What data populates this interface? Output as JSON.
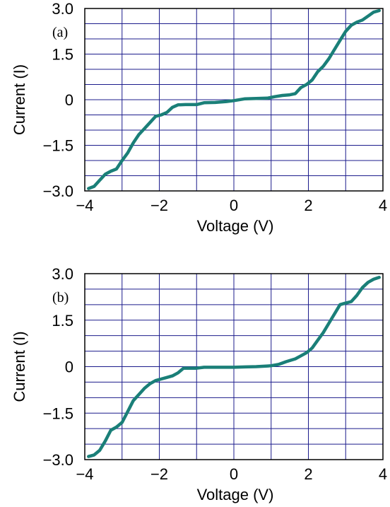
{
  "chart_data": [
    {
      "type": "line",
      "panel_label": "(a)",
      "xlabel": "Voltage (V)",
      "ylabel": "Current (I)",
      "xlim": [
        -4,
        4
      ],
      "ylim": [
        -3,
        3
      ],
      "x_ticks": [
        -4,
        -2,
        0,
        2,
        4
      ],
      "x_tick_labels": [
        "−4",
        "−2",
        "0",
        "2",
        "4"
      ],
      "y_ticks": [
        -3,
        -1.5,
        0,
        1.5,
        3
      ],
      "y_tick_labels": [
        "−3.0",
        "−1.5",
        "0",
        "1.5",
        "3.0"
      ],
      "grid": true,
      "line_color": "#1a7f78",
      "grid_color": "#1c1c8c",
      "x": [
        -3.9,
        -3.75,
        -3.6,
        -3.45,
        -3.3,
        -3.15,
        -3.0,
        -2.85,
        -2.7,
        -2.55,
        -2.4,
        -2.25,
        -2.1,
        -1.95,
        -1.8,
        -1.65,
        -1.5,
        -1.3,
        -1.0,
        -0.8,
        -0.5,
        -0.2,
        0.0,
        0.3,
        0.6,
        0.9,
        1.1,
        1.3,
        1.5,
        1.65,
        1.8,
        1.95,
        2.1,
        2.25,
        2.4,
        2.55,
        2.7,
        2.85,
        3.0,
        3.15,
        3.3,
        3.45,
        3.6,
        3.75,
        3.9
      ],
      "y": [
        -2.92,
        -2.85,
        -2.65,
        -2.45,
        -2.35,
        -2.28,
        -2.0,
        -1.75,
        -1.42,
        -1.15,
        -0.95,
        -0.75,
        -0.55,
        -0.5,
        -0.42,
        -0.25,
        -0.17,
        -0.16,
        -0.16,
        -0.1,
        -0.09,
        -0.06,
        -0.03,
        0.03,
        0.04,
        0.05,
        0.1,
        0.14,
        0.16,
        0.2,
        0.4,
        0.5,
        0.65,
        0.92,
        1.1,
        1.35,
        1.65,
        1.95,
        2.25,
        2.45,
        2.55,
        2.62,
        2.75,
        2.88,
        2.93
      ]
    },
    {
      "type": "line",
      "panel_label": "(b)",
      "xlabel": "Voltage (V)",
      "ylabel": "Current (I)",
      "xlim": [
        -4,
        4
      ],
      "ylim": [
        -3,
        3
      ],
      "x_ticks": [
        -4,
        -2,
        0,
        2,
        4
      ],
      "x_tick_labels": [
        "−4",
        "−2",
        "0",
        "2",
        "4"
      ],
      "y_ticks": [
        -3,
        -1.5,
        0,
        1.5,
        3
      ],
      "y_tick_labels": [
        "−3.0",
        "−1.5",
        "0",
        "1.5",
        "3.0"
      ],
      "grid": true,
      "line_color": "#1a7f78",
      "grid_color": "#1c1c8c",
      "x": [
        -3.9,
        -3.75,
        -3.6,
        -3.45,
        -3.3,
        -3.15,
        -3.0,
        -2.85,
        -2.7,
        -2.55,
        -2.4,
        -2.25,
        -2.1,
        -1.95,
        -1.8,
        -1.65,
        -1.5,
        -1.35,
        -1.2,
        -1.0,
        -0.8,
        -0.5,
        -0.2,
        0.0,
        0.3,
        0.6,
        0.9,
        1.0,
        1.2,
        1.4,
        1.65,
        1.8,
        1.95,
        2.1,
        2.25,
        2.4,
        2.55,
        2.7,
        2.85,
        3.0,
        3.15,
        3.3,
        3.45,
        3.6,
        3.75,
        3.9
      ],
      "y": [
        -2.9,
        -2.85,
        -2.7,
        -2.4,
        -2.05,
        -1.95,
        -1.8,
        -1.45,
        -1.1,
        -0.9,
        -0.7,
        -0.55,
        -0.45,
        -0.4,
        -0.35,
        -0.3,
        -0.2,
        -0.05,
        -0.05,
        -0.05,
        -0.02,
        -0.02,
        -0.02,
        -0.02,
        -0.01,
        0.0,
        0.02,
        0.03,
        0.07,
        0.16,
        0.25,
        0.35,
        0.45,
        0.6,
        0.85,
        1.1,
        1.4,
        1.7,
        2.0,
        2.05,
        2.1,
        2.3,
        2.55,
        2.72,
        2.82,
        2.88
      ]
    }
  ]
}
